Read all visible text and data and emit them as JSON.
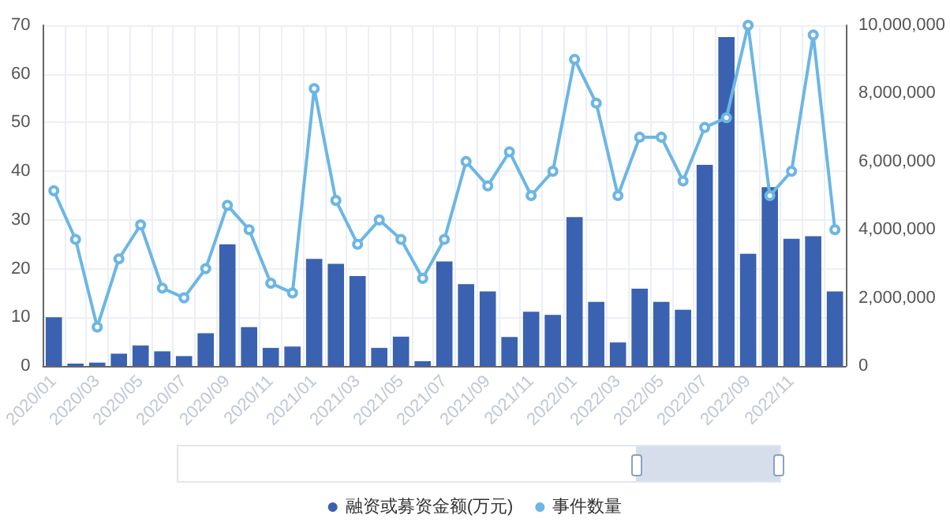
{
  "chart_data": {
    "type": "bar",
    "categories": [
      "2020/01",
      null,
      "2020/03",
      null,
      "2020/05",
      null,
      "2020/07",
      null,
      "2020/09",
      null,
      "2020/11",
      null,
      "2021/01",
      null,
      "2021/03",
      null,
      "2021/05",
      null,
      "2021/07",
      null,
      "2021/09",
      null,
      "2021/11",
      null,
      "2022/01",
      null,
      "2022/03",
      null,
      "2022/05",
      null,
      "2022/07",
      null,
      "2022/09",
      null,
      "2022/11",
      null,
      null
    ],
    "series": [
      {
        "name": "融资或募资金额(万元)",
        "axis": "y2",
        "color": "#3a62b0",
        "values": [
          1430000,
          70000,
          100000,
          360000,
          600000,
          430000,
          290000,
          960000,
          3570000,
          1140000,
          530000,
          570000,
          3140000,
          3000000,
          2640000,
          530000,
          860000,
          140000,
          3070000,
          2400000,
          2190000,
          850000,
          1590000,
          1500000,
          4370000,
          1880000,
          690000,
          2270000,
          1880000,
          1650000,
          5900000,
          9650000,
          3290000,
          5250000,
          3730000,
          3810000,
          2190000
        ]
      },
      {
        "name": "事件数量",
        "type": "line",
        "color": "#6cb6e4",
        "marker": "circle",
        "values": [
          36,
          26,
          8,
          22,
          29,
          16,
          14,
          20,
          33,
          28,
          17,
          15,
          57,
          34,
          25,
          30,
          26,
          18,
          26,
          42,
          37,
          44,
          35,
          40,
          63,
          54,
          35,
          47,
          47,
          38,
          49,
          51,
          70,
          35,
          40,
          68,
          28
        ]
      }
    ],
    "ylim": [
      0,
      70
    ],
    "yticks": [
      0,
      10,
      20,
      30,
      40,
      50,
      60,
      70
    ],
    "y2lim": [
      0,
      10000000
    ],
    "y2ticks": [
      {
        "value": 0,
        "label": "0"
      },
      {
        "value": 2000000,
        "label": "2,000,000"
      },
      {
        "value": 4000000,
        "label": "4,000,000"
      },
      {
        "value": 6000000,
        "label": "6,000,000"
      },
      {
        "value": 8000000,
        "label": "8,000,000"
      },
      {
        "value": 10000000,
        "label": "10,000,000"
      }
    ],
    "grid": true,
    "legend": "bottom"
  }
}
